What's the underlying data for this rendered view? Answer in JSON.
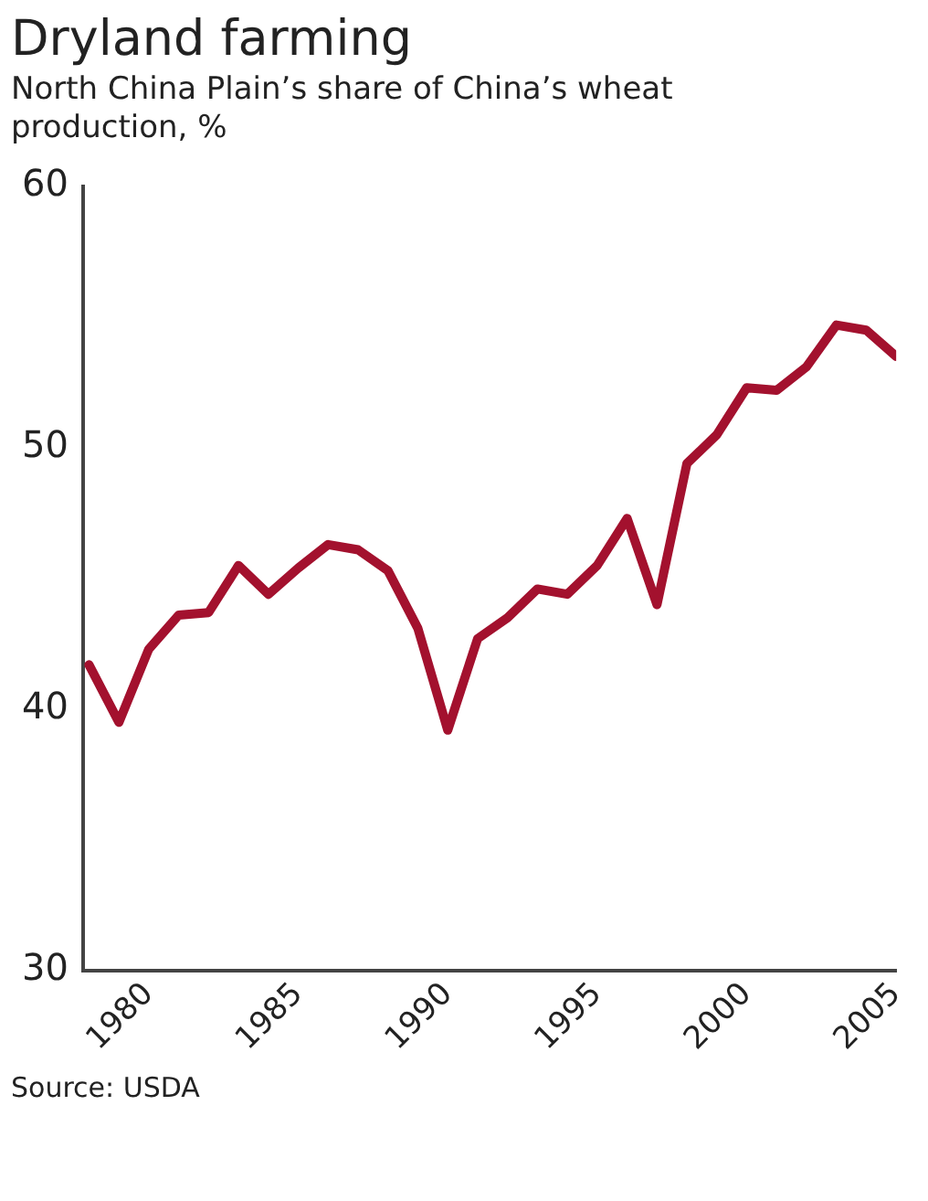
{
  "chart_data": {
    "type": "line",
    "title": "Dryland farming",
    "subtitle": "North China Plain’s share of China’s wheat production, %",
    "x": [
      1978,
      1979,
      1980,
      1981,
      1982,
      1983,
      1984,
      1985,
      1986,
      1987,
      1988,
      1989,
      1990,
      1991,
      1992,
      1993,
      1994,
      1995,
      1996,
      1997,
      1998,
      1999,
      2000,
      2001,
      2002,
      2003,
      2004,
      2005
    ],
    "series": [
      {
        "color": "#a3112e",
        "values": [
          41.7,
          39.5,
          42.3,
          43.6,
          43.7,
          45.5,
          44.4,
          45.4,
          46.3,
          46.1,
          45.3,
          43.1,
          39.2,
          42.7,
          43.5,
          44.6,
          44.4,
          45.5,
          47.3,
          44.0,
          49.4,
          50.5,
          52.3,
          52.2,
          53.1,
          54.7,
          54.5,
          53.5
        ]
      }
    ],
    "xlim": [
      1977.8,
      2005
    ],
    "xticks": [
      1980,
      1985,
      1990,
      1995,
      2000,
      2005
    ],
    "ylim": [
      30,
      60
    ],
    "yticks": [
      30,
      40,
      50,
      60
    ],
    "grid": false,
    "legend": false,
    "marker": "none",
    "line_style": "solid",
    "annotations": [
      "Source: USDA"
    ]
  }
}
